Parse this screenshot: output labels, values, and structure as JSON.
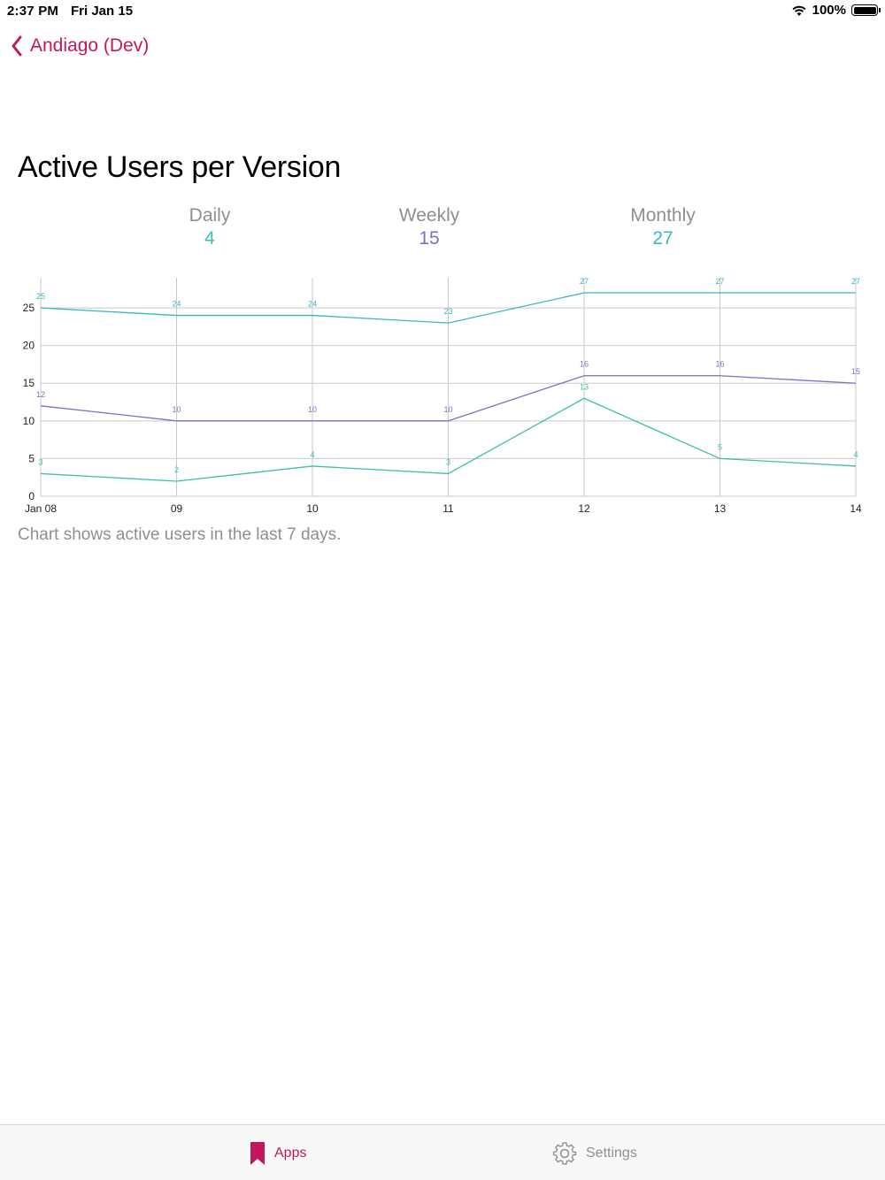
{
  "status_bar": {
    "time": "2:37 PM",
    "date": "Fri Jan 15",
    "battery": "100%"
  },
  "nav": {
    "back_label": "Andiago (Dev)"
  },
  "page": {
    "title": "Active Users per Version"
  },
  "stats": [
    {
      "label": "Daily",
      "value": "4",
      "color": "#3dbfad"
    },
    {
      "label": "Weekly",
      "value": "15",
      "color": "#7e6fc4"
    },
    {
      "label": "Monthly",
      "value": "27",
      "color": "#37b8c4"
    }
  ],
  "chart_data": {
    "type": "line",
    "categories": [
      "Jan 08",
      "09",
      "10",
      "11",
      "12",
      "13",
      "14"
    ],
    "ylim": [
      0,
      29
    ],
    "yticks": [
      0,
      5,
      10,
      15,
      20,
      25
    ],
    "grid": true,
    "series": [
      {
        "values": [
          25,
          24,
          24,
          23,
          27,
          27,
          27
        ],
        "color": "#37b8c4"
      },
      {
        "values": [
          12,
          10,
          10,
          10,
          16,
          16,
          15
        ],
        "color": "#7e6fc4"
      },
      {
        "values": [
          3,
          2,
          4,
          3,
          13,
          5,
          4
        ],
        "color": "#3dbfad"
      }
    ]
  },
  "caption": "Chart shows active users in the last 7 days.",
  "tabs": {
    "apps": {
      "label": "Apps",
      "icon": "bookmark-icon",
      "color": "#c2185b"
    },
    "settings": {
      "label": "Settings",
      "icon": "gear-icon",
      "color": "#8e8e93"
    }
  }
}
